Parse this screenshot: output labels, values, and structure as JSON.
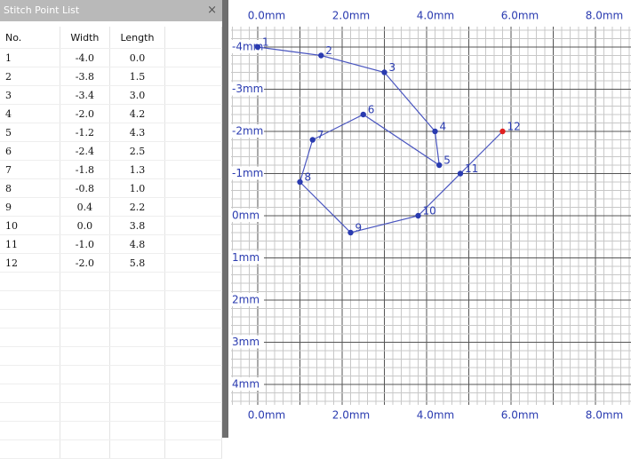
{
  "panel": {
    "title": "Stitch Point List",
    "close": "×",
    "headers": [
      "No.",
      "Width",
      "Length"
    ],
    "rows": [
      [
        "1",
        "-4.0",
        "0.0"
      ],
      [
        "2",
        "-3.8",
        "1.5"
      ],
      [
        "3",
        "-3.4",
        "3.0"
      ],
      [
        "4",
        "-2.0",
        "4.2"
      ],
      [
        "5",
        "-1.2",
        "4.3"
      ],
      [
        "6",
        "-2.4",
        "2.5"
      ],
      [
        "7",
        "-1.8",
        "1.3"
      ],
      [
        "8",
        "-0.8",
        "1.0"
      ],
      [
        "9",
        "0.4",
        "2.2"
      ],
      [
        "10",
        "0.0",
        "3.8"
      ],
      [
        "11",
        "-1.0",
        "4.8"
      ],
      [
        "12",
        "-2.0",
        "5.8"
      ]
    ]
  },
  "canvas": {
    "x_labels": [
      "0.0mm",
      "2.0mm",
      "4.0mm",
      "6.0mm",
      "8.0mm"
    ],
    "y_labels": [
      "-4mm",
      "-3mm",
      "-2mm",
      "-1mm",
      "0mm",
      "1mm",
      "2mm",
      "3mm",
      "4mm"
    ],
    "line_color": "#4a56c0",
    "point_colors": [
      "#2a3bb0",
      "#2a3bb0",
      "#2a3bb0",
      "#2a3bb0",
      "#2a3bb0",
      "#2a3bb0",
      "#2a3bb0",
      "#2a3bb0",
      "#2a3bb0",
      "#2a3bb0",
      "#2a3bb0",
      "#e02020"
    ]
  }
}
